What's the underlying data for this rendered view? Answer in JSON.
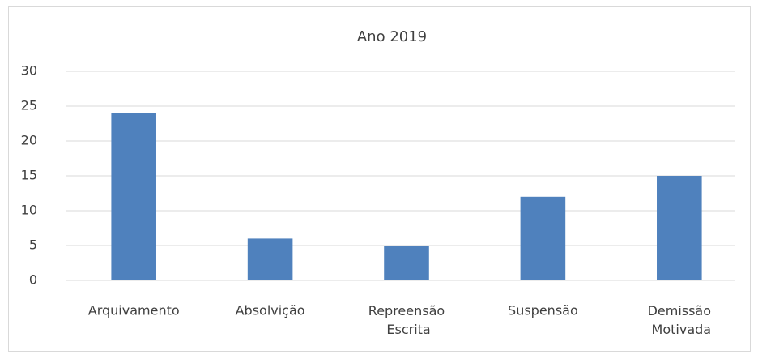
{
  "chart_data": {
    "type": "bar",
    "title": "Ano 2019",
    "categories": [
      "Arquivamento",
      "Absolvição",
      "Repreensão Escrita",
      "Suspensão",
      "Demissão Motivada"
    ],
    "values": [
      24,
      6,
      5,
      12,
      15
    ],
    "color": "#4f81bd",
    "ylim": [
      0,
      30
    ],
    "yticks": [
      0,
      5,
      10,
      15,
      20,
      25,
      30
    ],
    "grid": true
  }
}
